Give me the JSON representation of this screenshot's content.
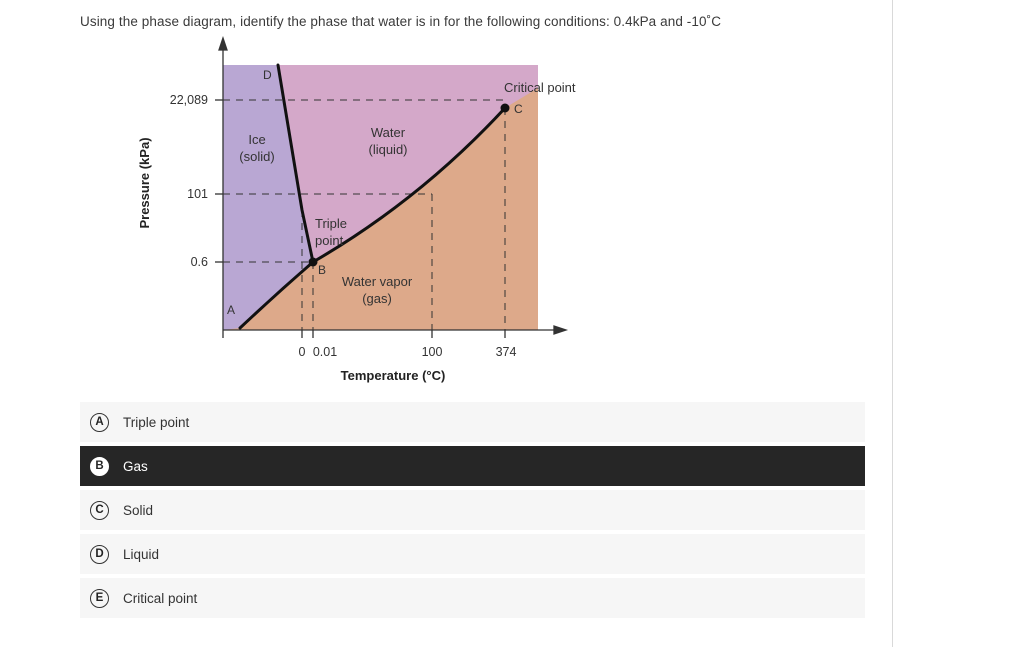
{
  "question": {
    "text": "Using the phase diagram, identify the phase that water is in for the following conditions: 0.4kPa and -10˚C"
  },
  "diagram": {
    "y_axis_label": "Pressure (kPa)",
    "x_axis_label": "Temperature (°C)",
    "y_ticks": [
      "22,089",
      "101",
      "0.6"
    ],
    "x_ticks": [
      "0",
      "0.01",
      "100",
      "374"
    ],
    "regions": {
      "ice": [
        "Ice",
        "(solid)"
      ],
      "water": [
        "Water",
        "(liquid)"
      ],
      "vapor": [
        "Water vapor",
        "(gas)"
      ]
    },
    "triple_point": [
      "Triple",
      "point"
    ],
    "critical_point": "Critical point",
    "point_letters": {
      "A": "A",
      "B": "B",
      "C": "C",
      "D": "D"
    },
    "colors": {
      "solid": "#b9a7d3",
      "liquid": "#d4a8c9",
      "gas": "#dda98a"
    }
  },
  "options": [
    {
      "letter": "A",
      "label": "Triple point",
      "selected": false
    },
    {
      "letter": "B",
      "label": "Gas",
      "selected": true
    },
    {
      "letter": "C",
      "label": "Solid",
      "selected": false
    },
    {
      "letter": "D",
      "label": "Liquid",
      "selected": false
    },
    {
      "letter": "E",
      "label": "Critical point",
      "selected": false
    }
  ]
}
